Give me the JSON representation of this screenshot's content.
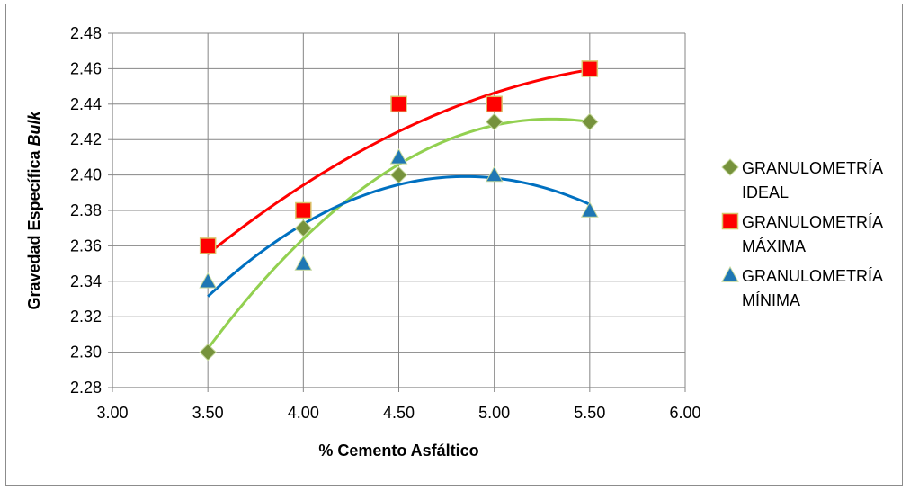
{
  "chart_data": {
    "type": "scatter",
    "xlabel": "% Cemento Asfáltico",
    "ylabel_prefix": "Gravedad Específica ",
    "ylabel_italic": "Bulk",
    "xlim": [
      3.0,
      6.0
    ],
    "ylim": [
      2.28,
      2.48
    ],
    "x_ticks": [
      "3.00",
      "3.50",
      "4.00",
      "4.50",
      "5.00",
      "5.50",
      "6.00"
    ],
    "y_ticks": [
      "2.28",
      "2.30",
      "2.32",
      "2.34",
      "2.36",
      "2.38",
      "2.40",
      "2.42",
      "2.44",
      "2.46",
      "2.48"
    ],
    "grid": true,
    "legend_position": "right",
    "trendline": "polynomial order 2",
    "series": [
      {
        "name_line1": "GRANULOMETRÍA",
        "name_line2": "IDEAL",
        "marker": "diamond",
        "color": "#76923c",
        "line_color": "#92d050",
        "x": [
          3.5,
          4.0,
          4.5,
          5.0,
          5.5
        ],
        "y": [
          2.3,
          2.37,
          2.4,
          2.43,
          2.43
        ]
      },
      {
        "name_line1": "GRANULOMETRÍA",
        "name_line2": "MÁXIMA",
        "marker": "square",
        "color": "#ff0000",
        "line_color": "#ff0000",
        "x": [
          3.5,
          4.0,
          4.5,
          5.0,
          5.5
        ],
        "y": [
          2.36,
          2.38,
          2.44,
          2.44,
          2.46
        ]
      },
      {
        "name_line1": "GRANULOMETRÍA",
        "name_line2": "MÍNIMA",
        "marker": "triangle",
        "color": "#1f77b4",
        "line_color": "#0070c0",
        "x": [
          3.5,
          4.0,
          4.5,
          5.0,
          5.5
        ],
        "y": [
          2.34,
          2.35,
          2.41,
          2.4,
          2.38
        ]
      }
    ]
  }
}
